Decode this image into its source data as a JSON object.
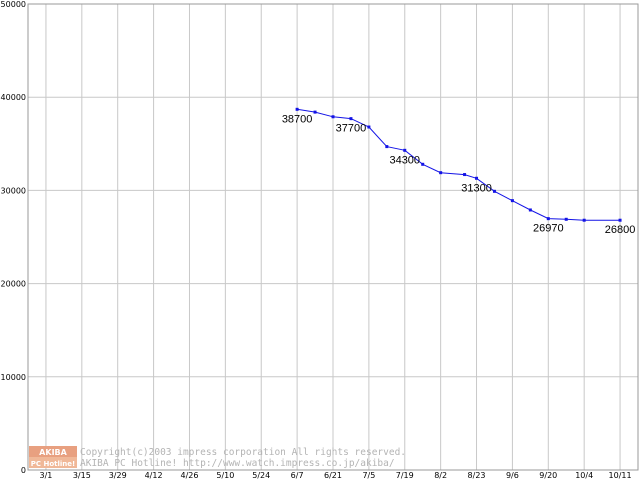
{
  "chart_data": {
    "type": "line",
    "x_tick_labels": [
      "3/1",
      "3/15",
      "3/29",
      "4/12",
      "4/26",
      "5/10",
      "5/24",
      "6/7",
      "6/21",
      "7/5",
      "7/19",
      "8/2",
      "8/23",
      "9/6",
      "9/20",
      "10/4",
      "10/11"
    ],
    "y_tick_labels": [
      "0",
      "10000",
      "20000",
      "30000",
      "40000",
      "50000"
    ],
    "ylim": [
      0,
      50000
    ],
    "grid": true,
    "series": [
      {
        "color": "#1414e6",
        "points": [
          {
            "x": "6/7",
            "y": 38700
          },
          {
            "x": "6/14",
            "y": 38400
          },
          {
            "x": "6/21",
            "y": 37900
          },
          {
            "x": "6/28",
            "y": 37700
          },
          {
            "x": "7/5",
            "y": 36800
          },
          {
            "x": "7/12",
            "y": 34700
          },
          {
            "x": "7/19",
            "y": 34300
          },
          {
            "x": "7/26",
            "y": 32800
          },
          {
            "x": "8/2",
            "y": 31900
          },
          {
            "x": "8/16",
            "y": 31700
          },
          {
            "x": "8/23",
            "y": 31300
          },
          {
            "x": "8/30",
            "y": 29900
          },
          {
            "x": "9/6",
            "y": 28900
          },
          {
            "x": "9/13",
            "y": 27900
          },
          {
            "x": "9/20",
            "y": 26970
          },
          {
            "x": "9/27",
            "y": 26900
          },
          {
            "x": "10/4",
            "y": 26800
          },
          {
            "x": "10/11",
            "y": 26800
          }
        ]
      }
    ],
    "data_labels": [
      {
        "x": "6/7",
        "y": 38700,
        "text": "38700"
      },
      {
        "x": "6/28",
        "y": 37700,
        "text": "37700"
      },
      {
        "x": "7/19",
        "y": 34300,
        "text": "34300"
      },
      {
        "x": "8/23",
        "y": 31300,
        "text": "31300"
      },
      {
        "x": "9/20",
        "y": 26970,
        "text": "26970"
      },
      {
        "x": "10/11",
        "y": 26800,
        "text": "26800"
      }
    ]
  },
  "watermark": {
    "logo_top": "AKIBA",
    "logo_bottom": "PC Hotline!",
    "line1": "Copyright(c)2003 impress corporation All rights reserved.",
    "line2": "AKIBA PC Hotline!  http://www.watch.impress.co.jp/akiba/"
  },
  "colors": {
    "grid": "#c8c8c8",
    "series": "#1414e6",
    "watermark": "#b4b4b4",
    "logo": "#e8a080"
  }
}
